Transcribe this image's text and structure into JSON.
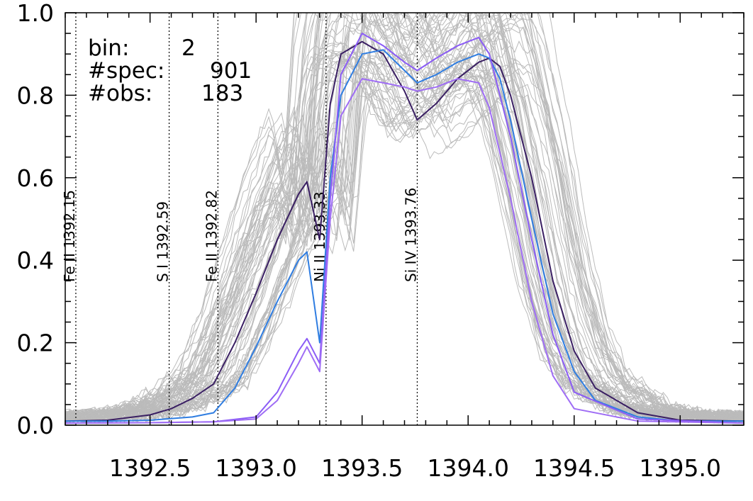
{
  "chart_data": {
    "type": "line",
    "xlim": [
      1392.1,
      1395.3
    ],
    "ylim": [
      0.0,
      1.0
    ],
    "x_ticks": [
      "1392.5",
      "1393.0",
      "1393.5",
      "1394.0",
      "1394.5",
      "1395.0"
    ],
    "y_ticks": [
      "0.0",
      "0.2",
      "0.4",
      "0.6",
      "0.8",
      "1.0"
    ],
    "info": {
      "bin_label": "bin:",
      "bin_value": "2",
      "spec_label": "#spec:",
      "spec_value": "901",
      "obs_label": "#obs:",
      "obs_value": "183"
    },
    "reference_lines": [
      {
        "x": 1392.15,
        "label": "Fe II 1392.15"
      },
      {
        "x": 1392.59,
        "label": "S I 1392.59"
      },
      {
        "x": 1392.82,
        "label": "Fe II 1392.82"
      },
      {
        "x": 1393.33,
        "label": "Ni II 1393.33"
      },
      {
        "x": 1393.76,
        "label": "Si IV 1393.76"
      }
    ],
    "background_color": "#bbbbbb",
    "series": [
      {
        "color": "#3a1f63",
        "x": [
          1392.1,
          1392.3,
          1392.5,
          1392.6,
          1392.7,
          1392.8,
          1392.9,
          1393.0,
          1393.1,
          1393.2,
          1393.24,
          1393.3,
          1393.35,
          1393.4,
          1393.5,
          1393.6,
          1393.7,
          1393.76,
          1393.85,
          1393.95,
          1394.05,
          1394.1,
          1394.15,
          1394.2,
          1394.3,
          1394.4,
          1394.5,
          1394.6,
          1394.8,
          1395.0,
          1395.3
        ],
        "y": [
          0.01,
          0.012,
          0.025,
          0.04,
          0.065,
          0.1,
          0.2,
          0.32,
          0.45,
          0.56,
          0.59,
          0.45,
          0.78,
          0.9,
          0.93,
          0.9,
          0.81,
          0.74,
          0.78,
          0.84,
          0.88,
          0.89,
          0.87,
          0.8,
          0.6,
          0.35,
          0.18,
          0.09,
          0.03,
          0.012,
          0.01
        ]
      },
      {
        "color": "#2f7de1",
        "x": [
          1392.1,
          1392.3,
          1392.5,
          1392.7,
          1392.8,
          1392.9,
          1393.0,
          1393.1,
          1393.2,
          1393.24,
          1393.3,
          1393.35,
          1393.4,
          1393.5,
          1393.6,
          1393.7,
          1393.76,
          1393.85,
          1393.95,
          1394.05,
          1394.1,
          1394.15,
          1394.2,
          1394.3,
          1394.4,
          1394.5,
          1394.6,
          1394.8,
          1395.0,
          1395.3
        ],
        "y": [
          0.01,
          0.01,
          0.012,
          0.02,
          0.03,
          0.09,
          0.19,
          0.3,
          0.4,
          0.42,
          0.2,
          0.6,
          0.8,
          0.9,
          0.91,
          0.86,
          0.83,
          0.85,
          0.88,
          0.9,
          0.89,
          0.84,
          0.74,
          0.5,
          0.27,
          0.13,
          0.06,
          0.02,
          0.01,
          0.01
        ]
      },
      {
        "color": "#8b5cf6",
        "x": [
          1392.1,
          1392.5,
          1392.8,
          1393.0,
          1393.1,
          1393.2,
          1393.24,
          1393.3,
          1393.35,
          1393.4,
          1393.5,
          1393.6,
          1393.7,
          1393.76,
          1393.85,
          1393.95,
          1394.05,
          1394.1,
          1394.2,
          1394.3,
          1394.4,
          1394.5,
          1394.8,
          1395.3
        ],
        "y": [
          0.005,
          0.006,
          0.008,
          0.02,
          0.08,
          0.18,
          0.21,
          0.15,
          0.55,
          0.85,
          0.95,
          0.92,
          0.88,
          0.86,
          0.89,
          0.92,
          0.94,
          0.9,
          0.7,
          0.45,
          0.22,
          0.08,
          0.015,
          0.005
        ]
      },
      {
        "color": "#9f6df5",
        "x": [
          1392.1,
          1392.5,
          1392.8,
          1393.0,
          1393.1,
          1393.2,
          1393.24,
          1393.3,
          1393.35,
          1393.4,
          1393.5,
          1393.6,
          1393.7,
          1393.76,
          1393.85,
          1393.95,
          1394.05,
          1394.1,
          1394.2,
          1394.3,
          1394.4,
          1394.5,
          1394.8,
          1395.3
        ],
        "y": [
          0.005,
          0.006,
          0.008,
          0.015,
          0.06,
          0.15,
          0.19,
          0.13,
          0.5,
          0.75,
          0.84,
          0.83,
          0.82,
          0.81,
          0.82,
          0.84,
          0.83,
          0.77,
          0.55,
          0.3,
          0.12,
          0.04,
          0.01,
          0.005
        ]
      }
    ]
  }
}
